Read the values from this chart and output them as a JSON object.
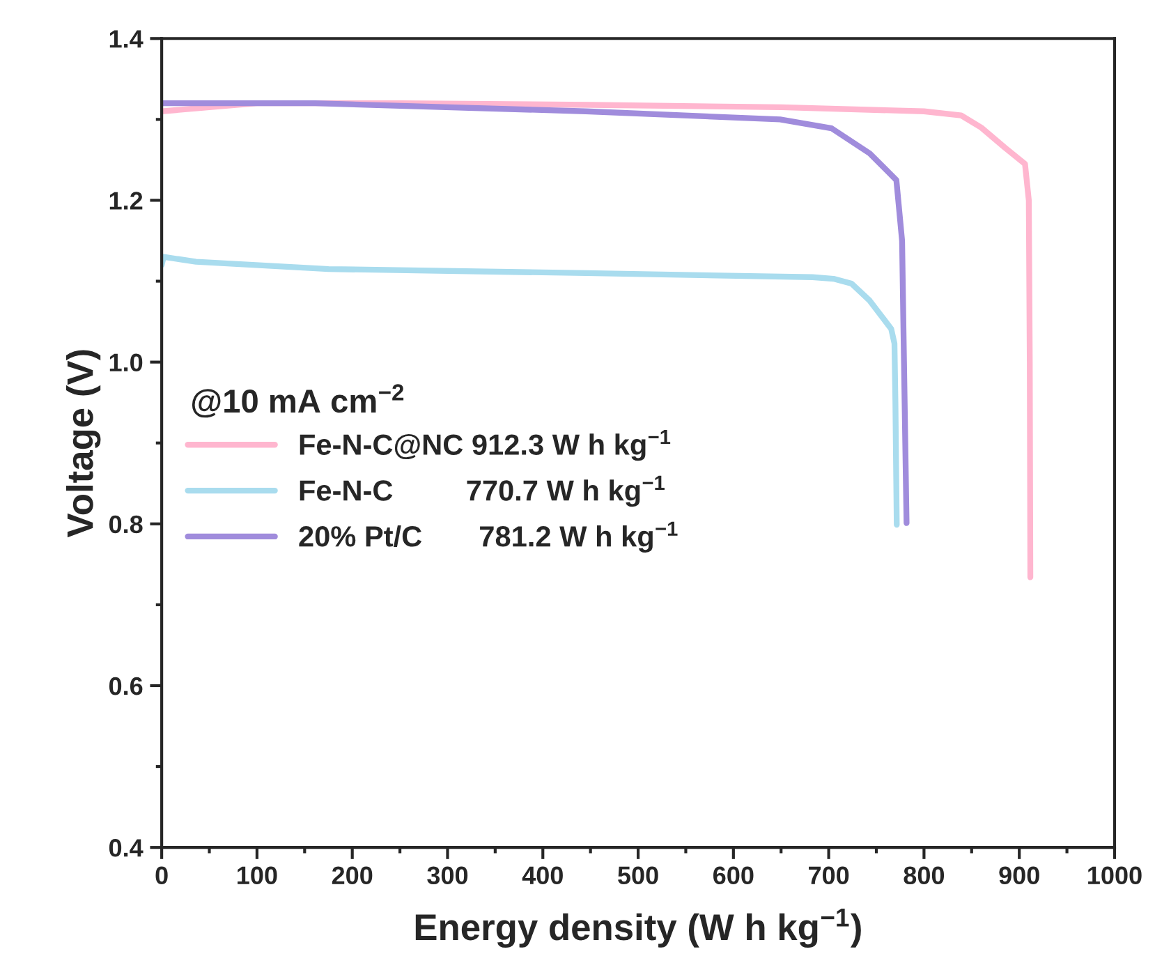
{
  "chart_data": {
    "type": "line",
    "xlabel": "Energy density (W h kg$^{−1}$)",
    "ylabel": "Voltage (V)",
    "annotations": [
      "@10 mA cm$^{−2}$"
    ],
    "series": [
      {
        "name": "Fe-N-C@NC 912.3 W h kg$^{−1}$",
        "color": "#ffb6cf",
        "x": [
          0,
          50,
          100,
          250,
          450,
          650,
          800,
          839,
          860,
          885,
          906,
          910,
          911,
          911.6
        ],
        "values": [
          1.31,
          1.315,
          1.32,
          1.32,
          1.318,
          1.315,
          1.31,
          1.305,
          1.29,
          1.265,
          1.245,
          1.2,
          1.0,
          0.734
        ]
      },
      {
        "name": "Fe-N-C         770.7 W h kg$^{−1}$",
        "color": "#a9dcee",
        "x": [
          0,
          2,
          36,
          175,
          445,
          683,
          705,
          724,
          743,
          765.6,
          769,
          770,
          771.4
        ],
        "values": [
          1.12,
          1.13,
          1.124,
          1.115,
          1.11,
          1.105,
          1.103,
          1.097,
          1.076,
          1.041,
          1.023,
          0.95,
          0.799
        ]
      },
      {
        "name": "20% Pt/C       781.2 W h kg$^{−1}$",
        "color": "#a08cdc",
        "x": [
          0,
          161,
          445,
          649,
          703,
          743,
          771,
          777,
          779,
          781.7
        ],
        "values": [
          1.32,
          1.32,
          1.31,
          1.3,
          1.289,
          1.258,
          1.225,
          1.15,
          1.0,
          0.801
        ]
      }
    ],
    "xlim": [
      0,
      1000
    ],
    "xticks": [
      0,
      100,
      200,
      300,
      400,
      500,
      600,
      700,
      800,
      900,
      1000
    ],
    "ylim": [
      0.4,
      1.4
    ],
    "yticks": [
      0.4,
      0.6,
      0.8,
      {
        "value": 1,
        "label": "1.0"
      },
      1.2,
      1.4
    ],
    "grid": false,
    "legend": "left",
    "line_style": "solid",
    "marker": "none"
  }
}
